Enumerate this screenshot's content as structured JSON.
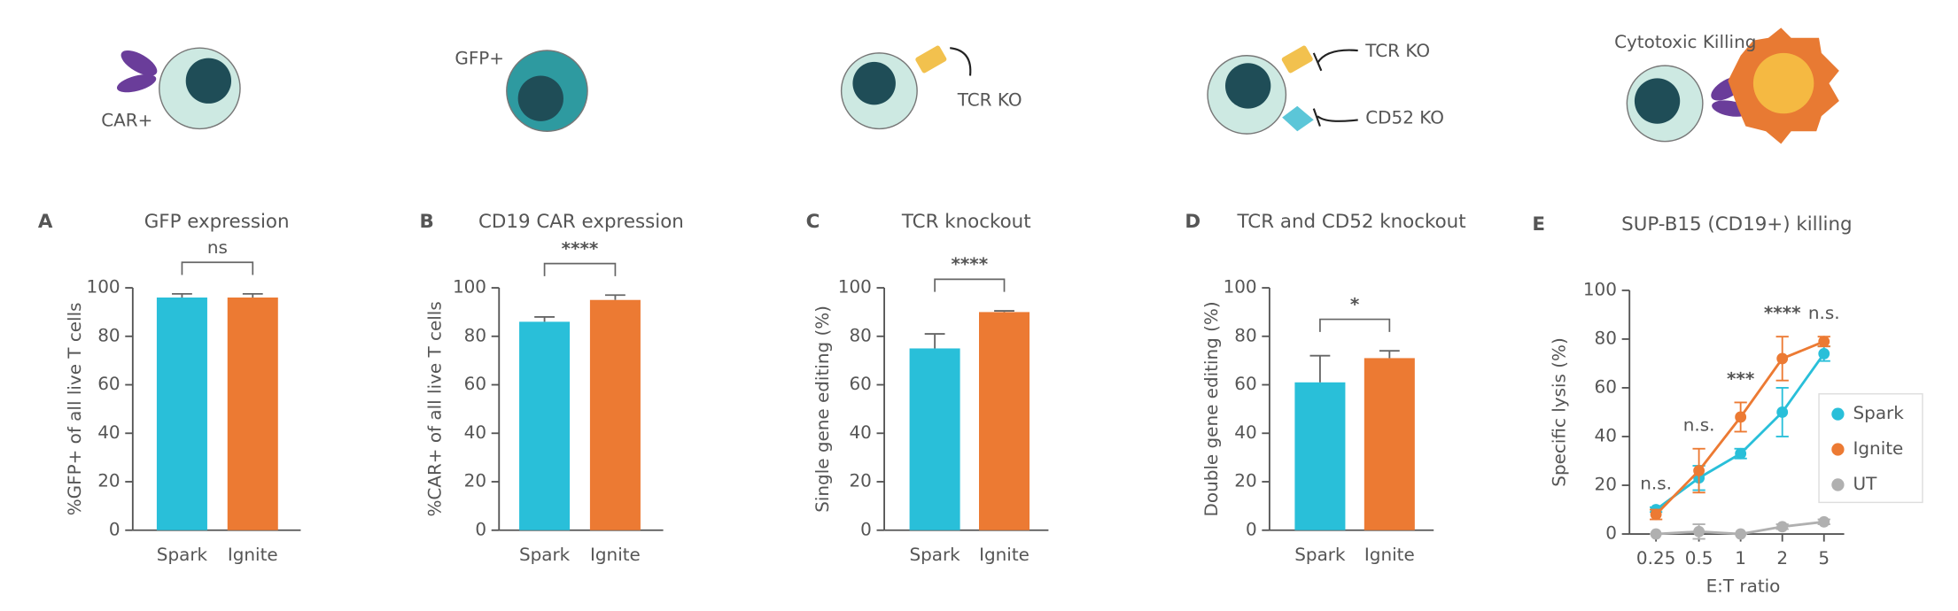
{
  "illustrations": {
    "labels": [
      "CAR+",
      "GFP+",
      "TCR KO",
      "TCR KO",
      "CD52 KO",
      "Cytotoxic Killing"
    ]
  },
  "chart_data": [
    {
      "type": "bar",
      "panel": "A",
      "title": "GFP expression",
      "ylabel": "%GFP+ of all live T cells",
      "categories": [
        "Spark",
        "Ignite"
      ],
      "values": [
        96,
        96
      ],
      "errors": [
        1.5,
        1.5
      ],
      "colors": [
        "#29bfd9",
        "#ec7a33"
      ],
      "significance": "ns",
      "ylim": [
        0,
        100
      ],
      "yticks": [
        0,
        20,
        40,
        60,
        80,
        100
      ]
    },
    {
      "type": "bar",
      "panel": "B",
      "title": "CD19 CAR expression",
      "ylabel": "%CAR+ of all live T cells",
      "categories": [
        "Spark",
        "Ignite"
      ],
      "values": [
        86,
        95
      ],
      "errors": [
        2,
        2
      ],
      "colors": [
        "#29bfd9",
        "#ec7a33"
      ],
      "significance": "****",
      "ylim": [
        0,
        100
      ],
      "yticks": [
        0,
        20,
        40,
        60,
        80,
        100
      ]
    },
    {
      "type": "bar",
      "panel": "C",
      "title": "TCR knockout",
      "ylabel": "Single gene editing (%)",
      "categories": [
        "Spark",
        "Ignite"
      ],
      "values": [
        75,
        90
      ],
      "errors": [
        6,
        0.5
      ],
      "colors": [
        "#29bfd9",
        "#ec7a33"
      ],
      "significance": "****",
      "ylim": [
        0,
        100
      ],
      "yticks": [
        0,
        20,
        40,
        60,
        80,
        100
      ]
    },
    {
      "type": "bar",
      "panel": "D",
      "title": "TCR and CD52 knockout",
      "ylabel": "Double gene editing (%)",
      "categories": [
        "Spark",
        "Ignite"
      ],
      "values": [
        61,
        71
      ],
      "errors": [
        11,
        3
      ],
      "colors": [
        "#29bfd9",
        "#ec7a33"
      ],
      "significance": "*",
      "ylim": [
        0,
        100
      ],
      "yticks": [
        0,
        20,
        40,
        60,
        80,
        100
      ]
    },
    {
      "type": "line",
      "panel": "E",
      "title": "SUP-B15 (CD19+) killing",
      "xlabel": "E:T ratio",
      "ylabel": "Specific lysis (%)",
      "categories": [
        "0.25",
        "0.5",
        "1",
        "2",
        "5"
      ],
      "series": [
        {
          "name": "Spark",
          "color": "#29bfd9",
          "values": [
            10,
            23,
            33,
            50,
            74
          ],
          "errors": [
            1,
            5,
            2,
            10,
            3
          ]
        },
        {
          "name": "Ignite",
          "color": "#ec7a33",
          "values": [
            8,
            26,
            48,
            72,
            79
          ],
          "errors": [
            2,
            9,
            6,
            9,
            2
          ]
        },
        {
          "name": "UT",
          "color": "#b0b0b0",
          "values": [
            0,
            1,
            0,
            3,
            5
          ],
          "errors": [
            0,
            3,
            0,
            1,
            1
          ]
        }
      ],
      "annotations": [
        "n.s.",
        "n.s.",
        "***",
        "****",
        "n.s."
      ],
      "ylim": [
        0,
        100
      ],
      "yticks": [
        0,
        20,
        40,
        60,
        80,
        100
      ],
      "legend": "right"
    }
  ]
}
